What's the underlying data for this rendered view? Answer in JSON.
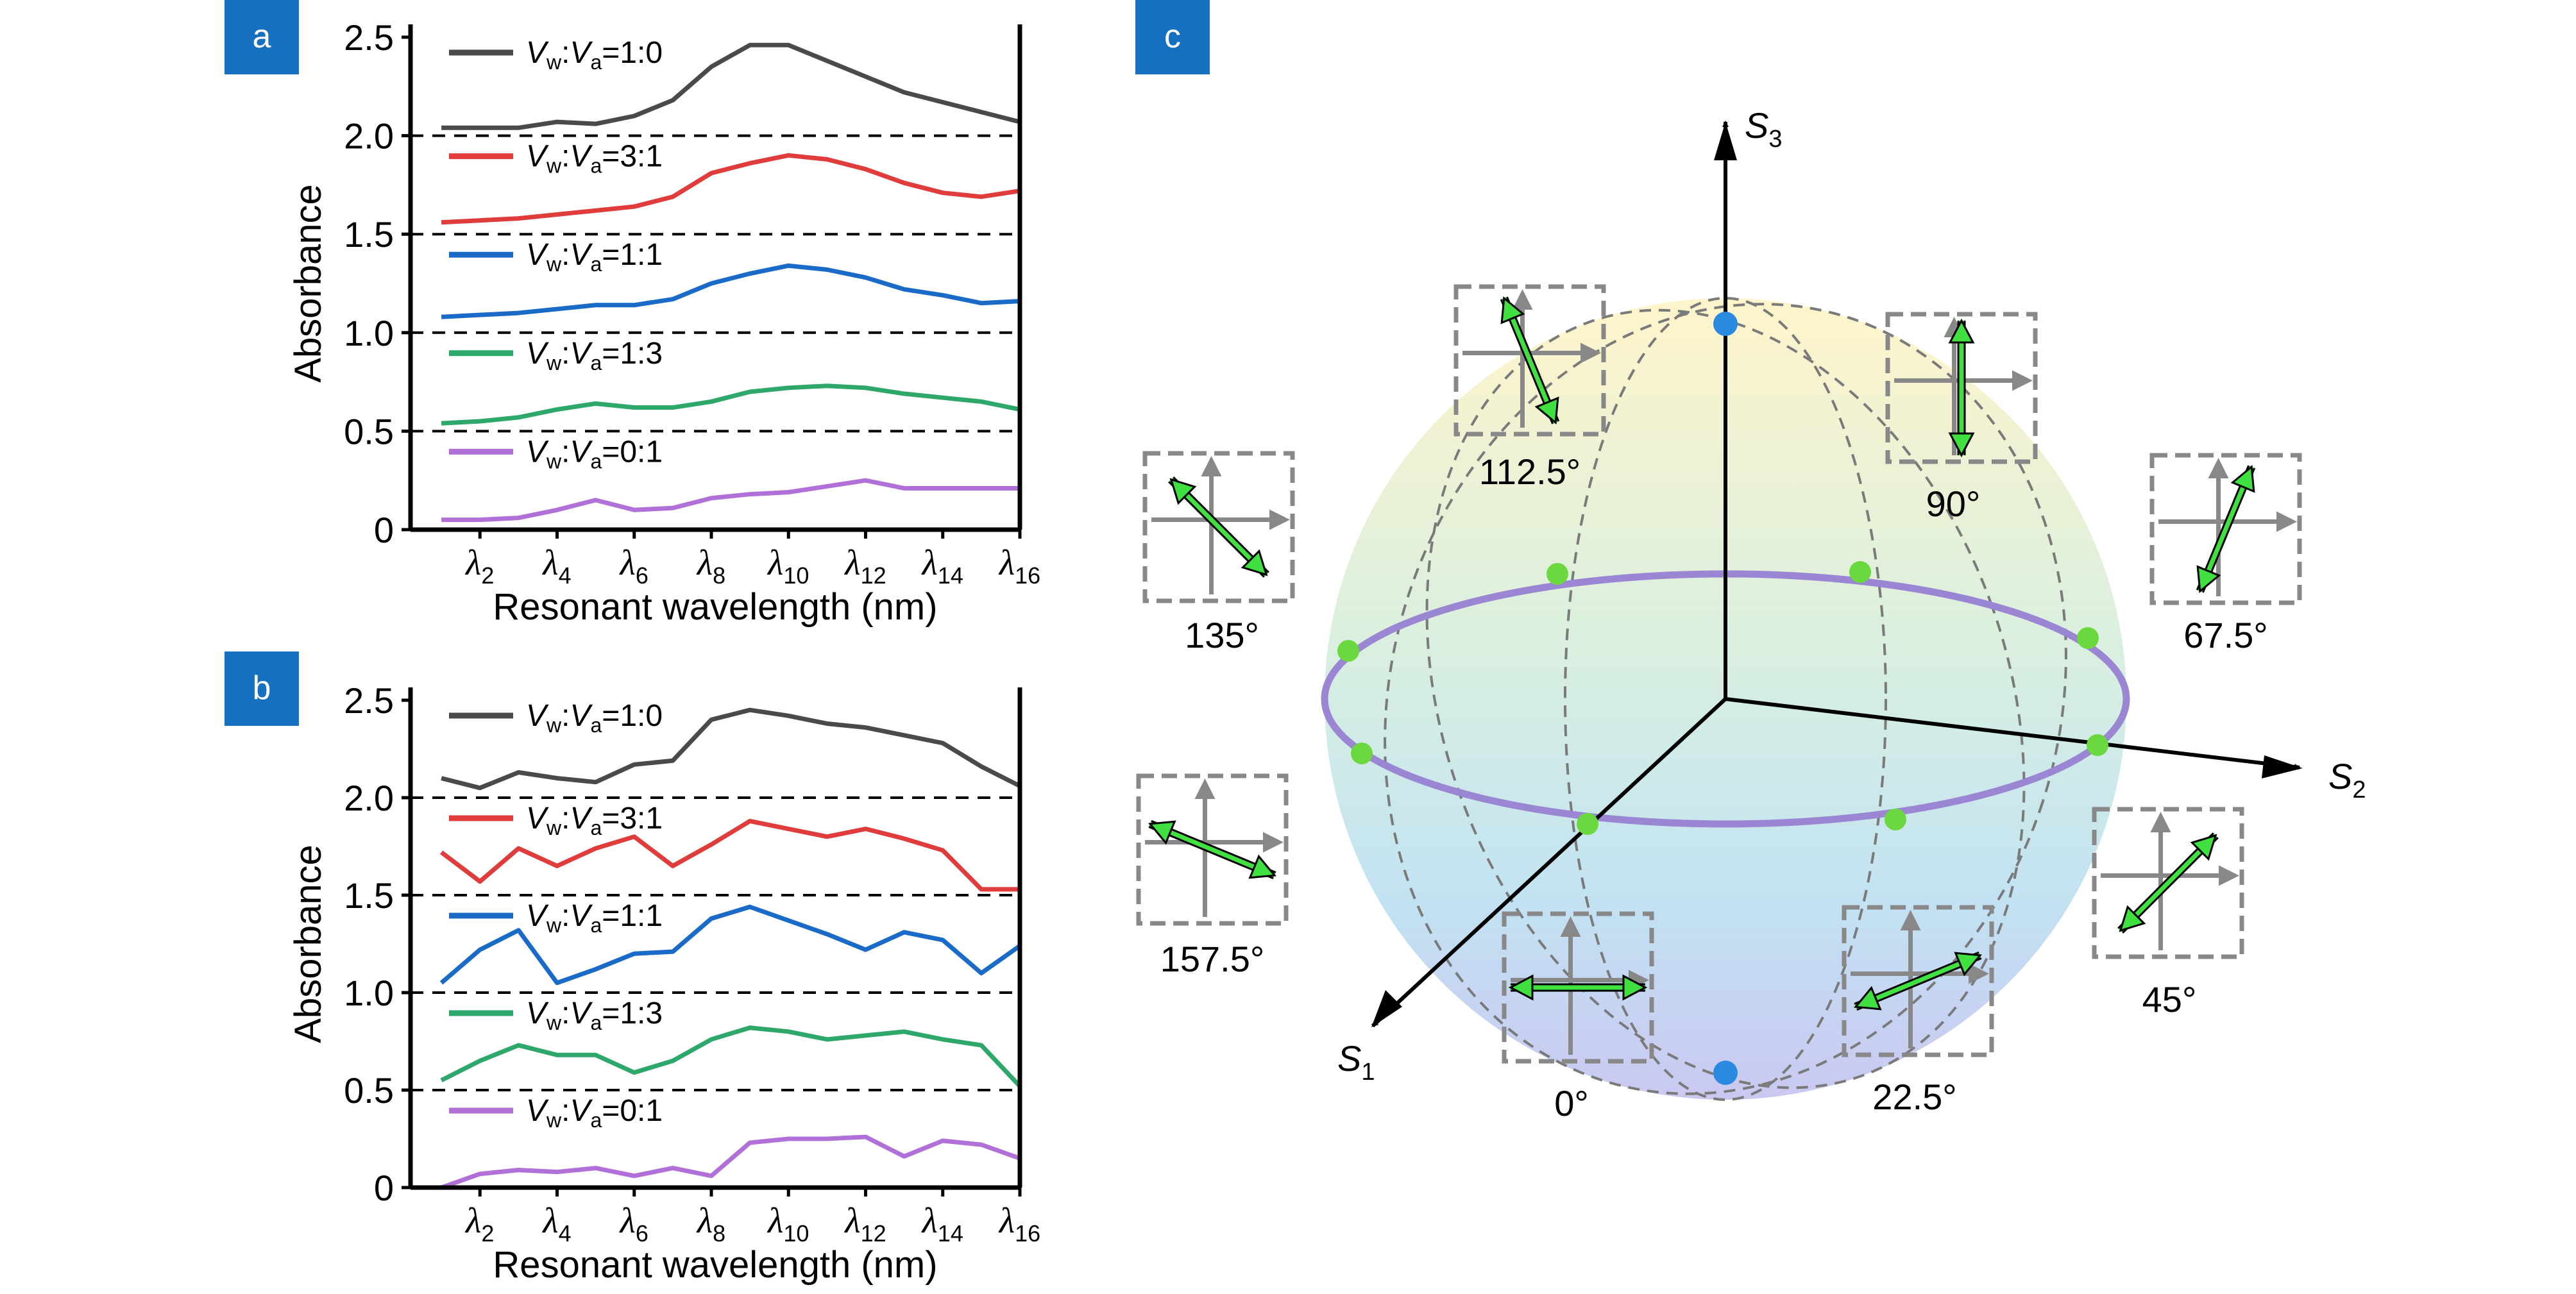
{
  "figure": {
    "panels": [
      "a",
      "b",
      "c"
    ]
  },
  "colors": {
    "panel_badge": "#1570c0",
    "axis": "#000000",
    "dashed_baseline": "#000000",
    "series": [
      "#4a4a4a",
      "#e03c3c",
      "#1a6bc8",
      "#2ea86a",
      "#b070d8"
    ],
    "sphere_ring": "#9a86d2",
    "ring_point": "#6ad83e",
    "pole_point": "#2a8ae0",
    "jones_arrow": "#40e040",
    "jones_box": "#888888"
  },
  "chart_data": [
    {
      "panel": "a",
      "type": "line",
      "ylabel": "Absorbance",
      "xlabel": "Resonant wavelength (nm)",
      "ylim": [
        0,
        2.5
      ],
      "yticks": [
        "0",
        "0.5",
        "1.0",
        "1.5",
        "2.0",
        "2.5"
      ],
      "xtick_symbol": "λ",
      "xtick_subs": [
        "2",
        "4",
        "6",
        "8",
        "10",
        "12",
        "14",
        "16"
      ],
      "x": [
        1,
        2,
        3,
        4,
        5,
        6,
        7,
        8,
        9,
        10,
        11,
        12,
        13,
        14,
        15,
        16
      ],
      "baselines": [
        0.5,
        1.0,
        1.5,
        2.0
      ],
      "series": [
        {
          "name": "Vw:Va=1:0",
          "ratio": "1:0",
          "values": [
            2.04,
            2.04,
            2.04,
            2.07,
            2.06,
            2.1,
            2.18,
            2.35,
            2.46,
            2.46,
            2.38,
            2.3,
            2.22,
            2.17,
            2.12,
            2.07
          ]
        },
        {
          "name": "Vw:Va=3:1",
          "ratio": "3:1",
          "values": [
            1.56,
            1.57,
            1.58,
            1.6,
            1.62,
            1.64,
            1.69,
            1.81,
            1.86,
            1.9,
            1.88,
            1.83,
            1.76,
            1.71,
            1.69,
            1.72
          ]
        },
        {
          "name": "Vw:Va=1:1",
          "ratio": "1:1",
          "values": [
            1.08,
            1.09,
            1.1,
            1.12,
            1.14,
            1.14,
            1.17,
            1.25,
            1.3,
            1.34,
            1.32,
            1.28,
            1.22,
            1.19,
            1.15,
            1.16
          ]
        },
        {
          "name": "Vw:Va=1:3",
          "ratio": "1:3",
          "values": [
            0.54,
            0.55,
            0.57,
            0.61,
            0.64,
            0.62,
            0.62,
            0.65,
            0.7,
            0.72,
            0.73,
            0.72,
            0.69,
            0.67,
            0.65,
            0.61
          ]
        },
        {
          "name": "Vw:Va=0:1",
          "ratio": "0:1",
          "values": [
            0.05,
            0.05,
            0.06,
            0.1,
            0.15,
            0.1,
            0.11,
            0.16,
            0.18,
            0.19,
            0.22,
            0.25,
            0.21,
            0.21,
            0.21,
            0.21
          ]
        }
      ]
    },
    {
      "panel": "b",
      "type": "line",
      "ylabel": "Absorbance",
      "xlabel": "Resonant wavelength (nm)",
      "ylim": [
        0,
        2.5
      ],
      "yticks": [
        "0",
        "0.5",
        "1.0",
        "1.5",
        "2.0",
        "2.5"
      ],
      "xtick_symbol": "λ",
      "xtick_subs": [
        "2",
        "4",
        "6",
        "8",
        "10",
        "12",
        "14",
        "16"
      ],
      "x": [
        1,
        2,
        3,
        4,
        5,
        6,
        7,
        8,
        9,
        10,
        11,
        12,
        13,
        14,
        15,
        16
      ],
      "baselines": [
        0.5,
        1.0,
        1.5,
        2.0
      ],
      "series": [
        {
          "name": "Vw:Va=1:0",
          "ratio": "1:0",
          "values": [
            2.1,
            2.05,
            2.13,
            2.1,
            2.08,
            2.17,
            2.19,
            2.4,
            2.45,
            2.42,
            2.38,
            2.36,
            2.32,
            2.28,
            2.16,
            2.06
          ]
        },
        {
          "name": "Vw:Va=3:1",
          "ratio": "3:1",
          "values": [
            1.72,
            1.57,
            1.74,
            1.65,
            1.74,
            1.8,
            1.65,
            1.76,
            1.88,
            1.84,
            1.8,
            1.84,
            1.79,
            1.73,
            1.53,
            1.53
          ]
        },
        {
          "name": "Vw:Va=1:1",
          "ratio": "1:1",
          "values": [
            1.05,
            1.22,
            1.32,
            1.05,
            1.12,
            1.2,
            1.21,
            1.38,
            1.44,
            1.37,
            1.3,
            1.22,
            1.31,
            1.27,
            1.1,
            1.24
          ]
        },
        {
          "name": "Vw:Va=1:3",
          "ratio": "1:3",
          "values": [
            0.55,
            0.65,
            0.73,
            0.68,
            0.68,
            0.59,
            0.65,
            0.76,
            0.82,
            0.8,
            0.76,
            0.78,
            0.8,
            0.76,
            0.73,
            0.52
          ]
        },
        {
          "name": "Vw:Va=0:1",
          "ratio": "0:1",
          "values": [
            0.0,
            0.07,
            0.09,
            0.08,
            0.1,
            0.06,
            0.1,
            0.06,
            0.23,
            0.25,
            0.25,
            0.26,
            0.16,
            0.24,
            0.22,
            0.15
          ]
        }
      ]
    }
  ],
  "panel_c": {
    "axes": {
      "s1": "S",
      "s1_sub": "1",
      "s2": "S",
      "s2_sub": "2",
      "s3": "S",
      "s3_sub": "3"
    },
    "angle_labels": [
      "0°",
      "22.5°",
      "45°",
      "67.5°",
      "90°",
      "112.5°",
      "135°",
      "157.5°"
    ],
    "jones_angles_deg": [
      0,
      22.5,
      45,
      67.5,
      90,
      112.5,
      135,
      157.5
    ]
  }
}
